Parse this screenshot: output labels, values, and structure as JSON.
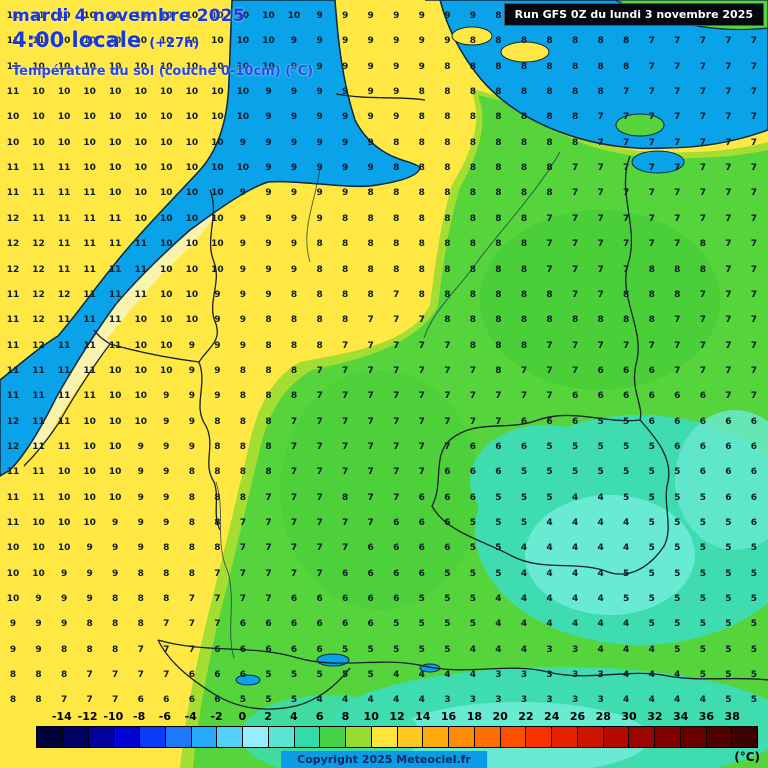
{
  "header": {
    "date_line": "mardi 4 novembre 2025",
    "time_line": "4:00 locale",
    "offset": "(+27h)",
    "subtitle": "Température du sol (couche 0-10cm) (°C)",
    "run_label": "Run GFS 0Z du lundi 3 novembre 2025"
  },
  "footer": {
    "copyright": "Copyright 2025 Meteociel.fr",
    "unit_label": "(°C)"
  },
  "colors": {
    "sea": "#0aa2e8",
    "land": "#ffe843",
    "coast_pale": "#faf3ae",
    "green": "#55d43c",
    "green_light": "#a5de33",
    "green_dark": "#47cd37",
    "turquoise": "#3fdcb0",
    "turquoise_light": "#69ead2",
    "number": "#0e1b28",
    "title_blue": "#1b38da",
    "run_bg": "#04070d",
    "copyright_bg": "#0a9ce4"
  },
  "scale": {
    "labels": [
      "-14",
      "-12",
      "-10",
      "-8",
      "-6",
      "-4",
      "-2",
      "0",
      "2",
      "4",
      "6",
      "8",
      "10",
      "12",
      "14",
      "16",
      "18",
      "20",
      "22",
      "24",
      "26",
      "28",
      "30",
      "32",
      "34",
      "36",
      "38"
    ],
    "segment_colors": [
      "#02023b",
      "#020264",
      "#02029b",
      "#0202d2",
      "#0a3cfa",
      "#1e78fa",
      "#28aafa",
      "#50d2fa",
      "#96eefa",
      "#5ae6d2",
      "#32dcaa",
      "#46d246",
      "#96dc32",
      "#ffe63c",
      "#ffc81e",
      "#ffaa0a",
      "#ff8c00",
      "#ff6e00",
      "#ff5000",
      "#fa3200",
      "#e62000",
      "#cd1400",
      "#b40a00",
      "#9b0500",
      "#820000",
      "#690000",
      "#500000",
      "#3c0000"
    ]
  },
  "grid": {
    "cols": 30,
    "rows": 28,
    "values": [
      "11 11 10 10 10 10 10 10 10 10 10 10 9 9 9 9 9 9 9 8 8 8 8 8 8 8 7 7 7 7",
      "11 11 10 10 10 10 10 10 10 10 10 9 9 9 9 9 9 9 8 8 8 8 8 8 8 7 7 7 7 7",
      "11 10 10 10 10 10 10 10 10 10 10 9 9 9 9 9 9 8 8 8 8 8 8 8 8 7 7 7 7 7",
      "11 10 10 10 10 10 10 10 10 10 9 9 9 9 9 9 8 8 8 8 8 8 8 8 7 7 7 7 7 7",
      "10 10 10 10 10 10 10 10 10 10 9 9 9 9 9 9 8 8 8 8 8 8 8 7 7 7 7 7 7 7",
      "10 10 10 10 10 10 10 10 10 9 9 9 9 9 9 8 8 8 8 8 8 8 8 7 7 7 7 7 7 7",
      "11 11 11 10 10 10 10 10 10 10 9 9 9 9 9 8 8 8 8 8 8 8 7 7 7 7 7 7 7 7",
      "11 11 11 11 10 10 10 10 10 9 9 9 9 9 8 8 8 8 8 8 8 8 7 7 7 7 7 7 7 7",
      "12 11 11 11 11 10 10 10 10 9 9 9 9 8 8 8 8 8 8 8 8 7 7 7 7 7 7 7 7 7",
      "12 12 11 11 11 11 10 10 10 9 9 9 8 8 8 8 8 8 8 8 8 7 7 7 7 7 7 8 7 7",
      "12 12 11 11 11 11 10 10 10 9 9 9 8 8 8 8 8 8 8 8 8 7 7 7 7 8 8 8 7 7",
      "11 12 12 11 11 11 10 10 9 9 9 8 8 8 8 7 8 8 8 8 8 8 7 7 8 8 8 7 7 7",
      "11 12 11 11 11 10 10 10 9 9 8 8 8 8 7 7 7 8 8 8 8 8 8 8 8 8 7 7 7 7",
      "11 12 11 11 11 10 10 9 9 9 8 8 8 7 7 7 7 7 8 8 8 7 7 7 7 7 7 7 7 7",
      "11 11 11 11 10 10 10 9 9 8 8 8 7 7 7 7 7 7 7 8 7 7 7 6 6 6 7 7 7 7",
      "11 11 11 11 10 10 9 9 9 8 8 8 7 7 7 7 7 7 7 7 7 7 6 6 6 6 6 6 7 7",
      "12 11 11 10 10 10 9 9 8 8 8 7 7 7 7 7 7 7 7 7 6 6 6 5 5 6 6 6 6 6",
      "12 11 11 10 10 9 9 9 8 8 8 7 7 7 7 7 7 7 6 6 6 5 5 5 5 5 6 6 6 6",
      "11 11 10 10 10 9 9 8 8 8 8 7 7 7 7 7 7 6 6 6 5 5 5 5 5 5 5 6 6 6",
      "11 11 10 10 10 9 9 8 8 8 7 7 7 8 7 7 6 6 6 5 5 5 4 4 5 5 5 5 6 6",
      "11 10 10 10 9 9 9 8 8 7 7 7 7 7 7 6 6 6 5 5 5 4 4 4 4 5 5 5 5 6",
      "10 10 10 9 9 9 8 8 8 7 7 7 7 7 6 6 6 6 5 5 4 4 4 4 4 5 5 5 5 5",
      "10 10 9 9 9 8 8 8 7 7 7 7 7 6 6 6 6 5 5 5 4 4 4 4 5 5 5 5 5 5",
      "10 9 9 9 8 8 8 7 7 7 7 6 6 6 6 6 5 5 5 4 4 4 4 4 5 5 5 5 5 5",
      "9 9 9 8 8 8 7 7 7 6 6 6 6 6 6 5 5 5 5 4 4 4 4 4 4 5 5 5 5 5",
      "9 9 8 8 8 7 7 7 6 6 6 6 6 5 5 5 5 5 4 4 4 3 3 4 4 4 5 5 5 5",
      "8 8 8 7 7 7 7 6 6 6 5 5 5 5 5 4 4 4 4 3 3 3 3 3 4 4 4 5 5 5",
      "8 8 7 7 7 6 6 6 6 5 5 5 4 4 4 4 4 3 3 3 3 3 3 3 4 4 4 4 5 5"
    ]
  }
}
